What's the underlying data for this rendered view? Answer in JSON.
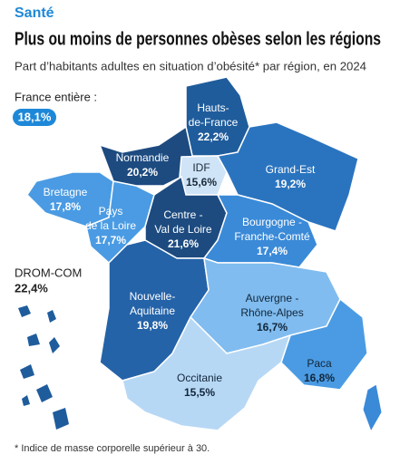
{
  "header": {
    "kicker": "Santé",
    "title": "Plus ou moins de personnes obèses selon les régions",
    "subtitle": "Part d’habitants adultes en situation d’obésité* par région, en 2024"
  },
  "france": {
    "label": "France entière :",
    "value": "18,1%"
  },
  "drom": {
    "label": "DROM-COM",
    "value": "22,4%"
  },
  "regions": [
    {
      "name": [
        "Hauts-",
        "de-France"
      ],
      "value": "22,2%",
      "color": "#1f5c9c",
      "text_color": "#ffffff"
    },
    {
      "name": [
        "Normandie"
      ],
      "value": "20,2%",
      "color": "#1d4b80",
      "text_color": "#ffffff"
    },
    {
      "name": [
        "IDF"
      ],
      "value": "15,6%",
      "color": "#cfe4f7",
      "text_color": "#1a2a3a"
    },
    {
      "name": [
        "Grand-Est"
      ],
      "value": "19,2%",
      "color": "#2a74bf",
      "text_color": "#ffffff"
    },
    {
      "name": [
        "Bretagne"
      ],
      "value": "17,8%",
      "color": "#4a9be3",
      "text_color": "#ffffff"
    },
    {
      "name": [
        "Pays",
        "de la Loire"
      ],
      "value": "17,7%",
      "color": "#4a9be3",
      "text_color": "#ffffff"
    },
    {
      "name": [
        "Centre -",
        "Val de Loire"
      ],
      "value": "21,6%",
      "color": "#1d4b80",
      "text_color": "#ffffff"
    },
    {
      "name": [
        "Bourgogne -",
        "Franche-Comté"
      ],
      "value": "17,4%",
      "color": "#3a8ad8",
      "text_color": "#ffffff"
    },
    {
      "name": [
        "Nouvelle-",
        "Aquitaine"
      ],
      "value": "19,8%",
      "color": "#2563a8",
      "text_color": "#ffffff"
    },
    {
      "name": [
        "Auvergne -",
        "Rhône-Alpes"
      ],
      "value": "16,7%",
      "color": "#80bcef",
      "text_color": "#12263a"
    },
    {
      "name": [
        "Paca"
      ],
      "value": "16,8%",
      "color": "#4a9be3",
      "text_color": "#12263a"
    },
    {
      "name": [
        "Occitanie"
      ],
      "value": "15,5%",
      "color": "#b7d8f5",
      "text_color": "#12263a"
    }
  ],
  "footnote": "* Indice de masse corporelle supérieur à 30."
}
